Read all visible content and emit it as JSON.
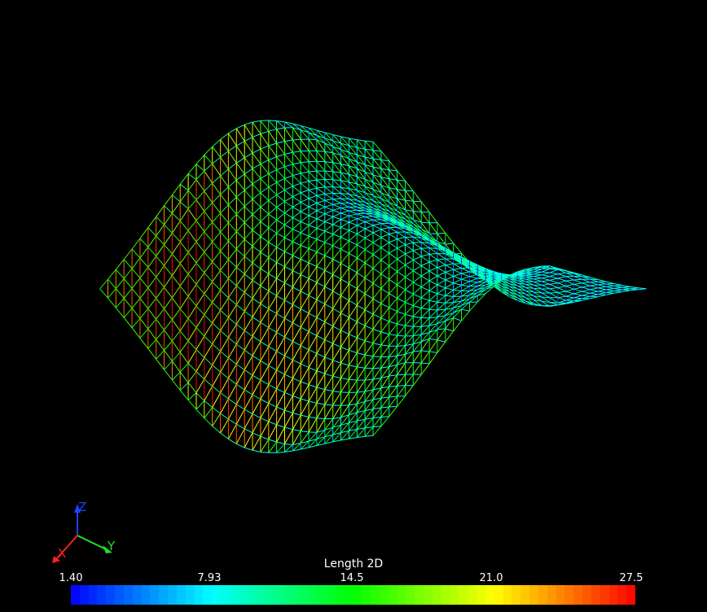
{
  "scalar_bar": {
    "title": "Length 2D",
    "ticks": [
      "1.40",
      "7.93",
      "14.5",
      "21.0",
      "27.5"
    ],
    "range": [
      1.4,
      27.5
    ],
    "colors": [
      "#0000ff",
      "#00ffff",
      "#00ff00",
      "#ffff00",
      "#ff0000"
    ]
  },
  "axes_triad": {
    "x_label": "X",
    "y_label": "Y",
    "z_label": "Z",
    "x_color": "#ff2020",
    "y_color": "#20e020",
    "z_color": "#2040ff"
  },
  "scene": {
    "background": "#000000",
    "representation": "wireframe mesh colored by edge length"
  }
}
